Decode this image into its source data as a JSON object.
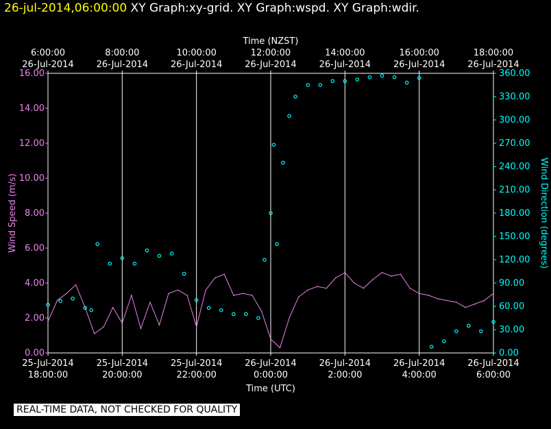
{
  "header": {
    "timestamp": "26-jul-2014,06:00:00",
    "graph_names": "XY Graph:xy-grid.  XY Graph:wspd.  XY Graph:wdir."
  },
  "footer_notice": "REAL-TIME DATA, NOT CHECKED FOR QUALITY",
  "colors": {
    "background": "#000000",
    "grid": "#ffffff",
    "wind_speed": "#ee82ee",
    "wind_direction": "#00ffff",
    "timestamp": "#ffff00"
  },
  "chart_data": {
    "type": "line",
    "top_axis": {
      "title": "Time (NZST)",
      "ticks": [
        {
          "time": "6:00:00",
          "date": "26-Jul-2014"
        },
        {
          "time": "8:00:00",
          "date": "26-Jul-2014"
        },
        {
          "time": "10:00:00",
          "date": "26-Jul-2014"
        },
        {
          "time": "12:00:00",
          "date": "26-Jul-2014"
        },
        {
          "time": "14:00:00",
          "date": "26-Jul-2014"
        },
        {
          "time": "16:00:00",
          "date": "26-Jul-2014"
        },
        {
          "time": "18:00:00",
          "date": "26-Jul-2014"
        }
      ]
    },
    "bottom_axis": {
      "title": "Time (UTC)",
      "range": [
        "25-Jul-2014 18:00:00",
        "26-Jul-2014 06:00:00"
      ],
      "ticks": [
        {
          "date": "25-Jul-2014",
          "time": "18:00:00"
        },
        {
          "date": "25-Jul-2014",
          "time": "20:00:00"
        },
        {
          "date": "25-Jul-2014",
          "time": "22:00:00"
        },
        {
          "date": "26-Jul-2014",
          "time": "0:00:00"
        },
        {
          "date": "26-Jul-2014",
          "time": "2:00:00"
        },
        {
          "date": "26-Jul-2014",
          "time": "4:00:00"
        },
        {
          "date": "26-Jul-2014",
          "time": "6:00:00"
        }
      ]
    },
    "left_axis": {
      "title": "Wind Speed (m/s)",
      "ylim": [
        0,
        16
      ],
      "ticks": [
        "0.00",
        "2.00",
        "4.00",
        "6.00",
        "8.00",
        "10.00",
        "12.00",
        "14.00",
        "16.00"
      ]
    },
    "right_axis": {
      "title": "Wind Direction (degrees)",
      "ylim": [
        0,
        360
      ],
      "ticks": [
        "0.00",
        "30.00",
        "60.00",
        "90.00",
        "120.00",
        "150.00",
        "180.00",
        "210.00",
        "240.00",
        "270.00",
        "300.00",
        "330.00",
        "360.00"
      ]
    },
    "grid": "vertical",
    "series": [
      {
        "name": "Wind Speed",
        "style": "line",
        "axis": "left",
        "x": [
          "25-Jul-2014 18:00:00",
          "25-Jul-2014 18:15:00",
          "25-Jul-2014 18:30:00",
          "25-Jul-2014 18:45:00",
          "25-Jul-2014 19:00:00",
          "25-Jul-2014 19:15:00",
          "25-Jul-2014 19:30:00",
          "25-Jul-2014 19:45:00",
          "25-Jul-2014 20:00:00",
          "25-Jul-2014 20:15:00",
          "25-Jul-2014 20:30:00",
          "25-Jul-2014 20:45:00",
          "25-Jul-2014 21:00:00",
          "25-Jul-2014 21:15:00",
          "25-Jul-2014 21:30:00",
          "25-Jul-2014 21:45:00",
          "25-Jul-2014 22:00:00",
          "25-Jul-2014 22:15:00",
          "25-Jul-2014 22:30:00",
          "25-Jul-2014 22:45:00",
          "25-Jul-2014 23:00:00",
          "25-Jul-2014 23:15:00",
          "25-Jul-2014 23:30:00",
          "25-Jul-2014 23:45:00",
          "26-Jul-2014 00:00:00",
          "26-Jul-2014 00:15:00",
          "26-Jul-2014 00:30:00",
          "26-Jul-2014 00:45:00",
          "26-Jul-2014 01:00:00",
          "26-Jul-2014 01:15:00",
          "26-Jul-2014 01:30:00",
          "26-Jul-2014 01:45:00",
          "26-Jul-2014 02:00:00",
          "26-Jul-2014 02:15:00",
          "26-Jul-2014 02:30:00",
          "26-Jul-2014 02:45:00",
          "26-Jul-2014 03:00:00",
          "26-Jul-2014 03:15:00",
          "26-Jul-2014 03:30:00",
          "26-Jul-2014 03:45:00",
          "26-Jul-2014 04:00:00",
          "26-Jul-2014 04:15:00",
          "26-Jul-2014 04:30:00",
          "26-Jul-2014 04:45:00",
          "26-Jul-2014 05:00:00",
          "26-Jul-2014 05:15:00",
          "26-Jul-2014 05:30:00",
          "26-Jul-2014 05:45:00",
          "26-Jul-2014 06:00:00"
        ],
        "values": [
          1.8,
          3.0,
          3.4,
          3.9,
          2.6,
          1.1,
          1.5,
          2.6,
          1.7,
          3.3,
          1.4,
          2.9,
          1.6,
          3.4,
          3.6,
          3.3,
          1.5,
          3.6,
          4.3,
          4.5,
          3.3,
          3.4,
          3.3,
          2.4,
          0.8,
          0.3,
          2.0,
          3.2,
          3.6,
          3.8,
          3.7,
          4.3,
          4.6,
          4.0,
          3.7,
          4.2,
          4.6,
          4.4,
          4.5,
          3.7,
          3.4,
          3.3,
          3.1,
          3.0,
          2.9,
          2.6,
          2.8,
          3.0,
          3.4
        ]
      },
      {
        "name": "Wind Direction",
        "style": "scatter",
        "axis": "right",
        "x": [
          "25-Jul-2014 18:00:00",
          "25-Jul-2014 18:20:00",
          "25-Jul-2014 18:40:00",
          "25-Jul-2014 19:00:00",
          "25-Jul-2014 19:10:00",
          "25-Jul-2014 19:20:00",
          "25-Jul-2014 19:40:00",
          "25-Jul-2014 20:00:00",
          "25-Jul-2014 20:20:00",
          "25-Jul-2014 20:40:00",
          "25-Jul-2014 21:00:00",
          "25-Jul-2014 21:20:00",
          "25-Jul-2014 21:40:00",
          "25-Jul-2014 22:00:00",
          "25-Jul-2014 22:20:00",
          "25-Jul-2014 22:40:00",
          "25-Jul-2014 23:00:00",
          "25-Jul-2014 23:20:00",
          "25-Jul-2014 23:40:00",
          "25-Jul-2014 23:50:00",
          "26-Jul-2014 00:00:00",
          "26-Jul-2014 00:05:00",
          "26-Jul-2014 00:10:00",
          "26-Jul-2014 00:20:00",
          "26-Jul-2014 00:30:00",
          "26-Jul-2014 00:40:00",
          "26-Jul-2014 01:00:00",
          "26-Jul-2014 01:20:00",
          "26-Jul-2014 01:40:00",
          "26-Jul-2014 02:00:00",
          "26-Jul-2014 02:20:00",
          "26-Jul-2014 02:40:00",
          "26-Jul-2014 03:00:00",
          "26-Jul-2014 03:20:00",
          "26-Jul-2014 03:40:00",
          "26-Jul-2014 04:00:00",
          "26-Jul-2014 04:20:00",
          "26-Jul-2014 04:40:00",
          "26-Jul-2014 05:00:00",
          "26-Jul-2014 05:20:00",
          "26-Jul-2014 05:40:00",
          "26-Jul-2014 06:00:00"
        ],
        "values": [
          62,
          67,
          70,
          58,
          55,
          140,
          115,
          122,
          115,
          132,
          125,
          128,
          102,
          68,
          58,
          55,
          50,
          50,
          45,
          120,
          180,
          268,
          140,
          245,
          305,
          330,
          345,
          345,
          350,
          350,
          352,
          355,
          357,
          355,
          348,
          354,
          8,
          15,
          28,
          35,
          28,
          40
        ]
      }
    ]
  }
}
